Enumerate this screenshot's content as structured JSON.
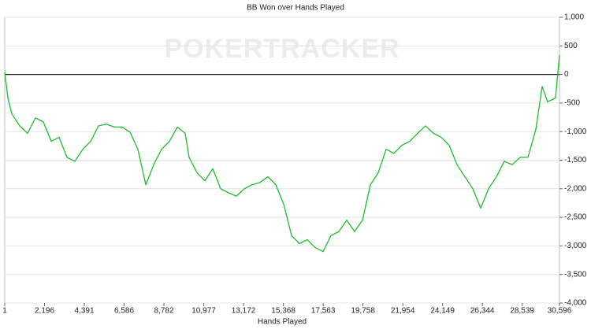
{
  "chart_data": {
    "type": "line",
    "title": "BB Won over Hands Played",
    "watermark": "POKERTRACKER",
    "x_label": "Hands Played",
    "x": [
      1,
      175,
      392,
      827,
      1261,
      1696,
      2131,
      2565,
      3000,
      3434,
      3869,
      4304,
      4738,
      5173,
      5607,
      6042,
      6477,
      6911,
      7346,
      7780,
      8215,
      8650,
      9084,
      9519,
      9953,
      10171,
      10605,
      11040,
      11474,
      11909,
      12344,
      12778,
      13213,
      13647,
      14082,
      14517,
      14951,
      15386,
      15820,
      16255,
      16689,
      17124,
      17559,
      17993,
      18428,
      18862,
      19297,
      19732,
      20166,
      20601,
      21035,
      21470,
      21905,
      22339,
      22774,
      23208,
      23643,
      24078,
      24512,
      24947,
      25381,
      25816,
      26251,
      26685,
      27120,
      27554,
      27989,
      28424,
      28858,
      29293,
      29641,
      29945,
      30379,
      30596
    ],
    "series": [
      {
        "name": "BB Won",
        "color": "#1fba2e",
        "values": [
          40,
          -410,
          -690,
          -900,
          -1030,
          -760,
          -830,
          -1170,
          -1100,
          -1450,
          -1520,
          -1310,
          -1170,
          -900,
          -870,
          -920,
          -920,
          -1010,
          -1310,
          -1930,
          -1580,
          -1310,
          -1170,
          -920,
          -1030,
          -1450,
          -1720,
          -1860,
          -1650,
          -2000,
          -2070,
          -2130,
          -2000,
          -1930,
          -1890,
          -1790,
          -1930,
          -2270,
          -2820,
          -2960,
          -2890,
          -3030,
          -3100,
          -2820,
          -2750,
          -2550,
          -2750,
          -2550,
          -1930,
          -1720,
          -1310,
          -1380,
          -1240,
          -1170,
          -1030,
          -900,
          -1030,
          -1100,
          -1240,
          -1580,
          -1790,
          -2000,
          -2340,
          -2000,
          -1790,
          -1520,
          -1580,
          -1450,
          -1450,
          -960,
          -210,
          -480,
          -410,
          340
        ]
      }
    ],
    "xlim": [
      1,
      30596
    ],
    "xticks": [
      1,
      {
        "value": 2196,
        "label": "2,196"
      },
      {
        "value": 4391,
        "label": "4,391"
      },
      {
        "value": 6586,
        "label": "6,586"
      },
      {
        "value": 8782,
        "label": "8,782"
      },
      {
        "value": 10977,
        "label": "10,977"
      },
      {
        "value": 13172,
        "label": "13,172"
      },
      {
        "value": 15368,
        "label": "15,368"
      },
      {
        "value": 17563,
        "label": "17,563"
      },
      {
        "value": 19758,
        "label": "19,758"
      },
      {
        "value": 21954,
        "label": "21,954"
      },
      {
        "value": 24149,
        "label": "24,149"
      },
      {
        "value": 26344,
        "label": "26,344"
      },
      {
        "value": 28539,
        "label": "28,539"
      },
      {
        "value": 30596,
        "label": "30,596"
      }
    ],
    "ylim": [
      -4000,
      1000
    ],
    "yticks": [
      {
        "value": -4000,
        "label": "-4,000"
      },
      {
        "value": -3500,
        "label": "-3,500"
      },
      {
        "value": -3000,
        "label": "-3,000"
      },
      {
        "value": -2500,
        "label": "-2,500"
      },
      {
        "value": -2000,
        "label": "-2,000"
      },
      {
        "value": -1500,
        "label": "-1,500"
      },
      {
        "value": -1000,
        "label": "-1,000"
      },
      -500,
      0,
      500,
      {
        "value": 1000,
        "label": "1,000"
      }
    ],
    "grid": true
  }
}
